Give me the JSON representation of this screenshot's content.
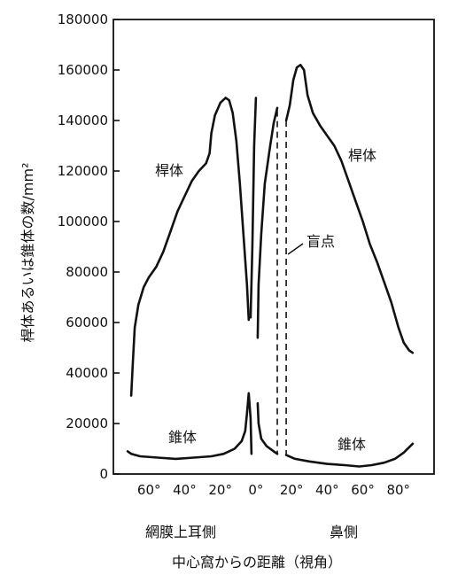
{
  "chart_data": {
    "type": "line",
    "ylabel": "桿体あるいは錐体の数/mm²",
    "xlabel": "中心窩からの距離（視角）",
    "ylim": [
      0,
      180000
    ],
    "xlim": [
      -80,
      100
    ],
    "y_ticks": [
      "180000",
      "160000",
      "140000",
      "120000",
      "100000",
      "80000",
      "60000",
      "40000",
      "20000",
      "0"
    ],
    "x_ticks": [
      {
        "v": -60,
        "label": "60°"
      },
      {
        "v": -40,
        "label": "40°"
      },
      {
        "v": -20,
        "label": "20°"
      },
      {
        "v": 0,
        "label": "0°"
      },
      {
        "v": 20,
        "label": "20°"
      },
      {
        "v": 40,
        "label": "40°"
      },
      {
        "v": 60,
        "label": "60°"
      },
      {
        "v": 80,
        "label": "80°"
      }
    ],
    "region_labels": {
      "temporal": "網膜上耳側",
      "nasal": "鼻側"
    },
    "blind_spot": {
      "label": "盲点",
      "x_range": [
        12,
        17
      ]
    },
    "series": [
      {
        "name": "桿体",
        "segments": [
          [
            [
              -70,
              31000
            ],
            [
              -69,
              45000
            ],
            [
              -68,
              58000
            ],
            [
              -66,
              67000
            ],
            [
              -63,
              74000
            ],
            [
              -60,
              78000
            ],
            [
              -56,
              82000
            ],
            [
              -52,
              88000
            ],
            [
              -48,
              96000
            ],
            [
              -44,
              104000
            ],
            [
              -40,
              110000
            ],
            [
              -36,
              116000
            ],
            [
              -32,
              120000
            ],
            [
              -28,
              123000
            ],
            [
              -26,
              127000
            ],
            [
              -25,
              135000
            ],
            [
              -23,
              142000
            ],
            [
              -20,
              147000
            ],
            [
              -17,
              149000
            ],
            [
              -15,
              148000
            ],
            [
              -13,
              143000
            ],
            [
              -11,
              132000
            ],
            [
              -9,
              115000
            ],
            [
              -7,
              95000
            ],
            [
              -5,
              75000
            ],
            [
              -4,
              61000
            ]
          ],
          [
            [
              -3,
              62000
            ],
            [
              -2,
              90000
            ],
            [
              -1,
              130000
            ],
            [
              0,
              149000
            ]
          ],
          [
            [
              1,
              54000
            ],
            [
              1.5,
              75000
            ],
            [
              3,
              95000
            ],
            [
              5,
              115000
            ],
            [
              8,
              130000
            ],
            [
              10,
              139000
            ],
            [
              12,
              145000
            ]
          ],
          [
            [
              17,
              140000
            ],
            [
              19,
              146000
            ],
            [
              21,
              156000
            ],
            [
              23,
              161000
            ],
            [
              25,
              162000
            ],
            [
              27,
              160000
            ],
            [
              29,
              150000
            ],
            [
              32,
              143000
            ],
            [
              36,
              138000
            ],
            [
              40,
              134000
            ],
            [
              44,
              130000
            ],
            [
              48,
              124000
            ],
            [
              52,
              116000
            ],
            [
              56,
              108000
            ],
            [
              60,
              100000
            ],
            [
              64,
              91000
            ],
            [
              68,
              84000
            ],
            [
              72,
              76000
            ],
            [
              76,
              68000
            ],
            [
              80,
              58000
            ],
            [
              83,
              52000
            ],
            [
              86,
              49000
            ],
            [
              88,
              48000
            ]
          ]
        ]
      },
      {
        "name": "錐体",
        "segments": [
          [
            [
              -72,
              9000
            ],
            [
              -70,
              8000
            ],
            [
              -65,
              7000
            ],
            [
              -55,
              6500
            ],
            [
              -45,
              6000
            ],
            [
              -35,
              6500
            ],
            [
              -25,
              7000
            ],
            [
              -18,
              8000
            ],
            [
              -12,
              10000
            ],
            [
              -8,
              13000
            ],
            [
              -6,
              17000
            ],
            [
              -5,
              24000
            ],
            [
              -4,
              32000
            ],
            [
              -3,
              22000
            ],
            [
              -2.5,
              8000
            ]
          ],
          [
            [
              1,
              28000
            ],
            [
              1.5,
              20000
            ],
            [
              3,
              14000
            ],
            [
              6,
              11000
            ],
            [
              10,
              9000
            ],
            [
              12,
              8000
            ]
          ],
          [
            [
              17,
              7500
            ],
            [
              22,
              6000
            ],
            [
              30,
              5000
            ],
            [
              40,
              4000
            ],
            [
              50,
              3500
            ],
            [
              58,
              3000
            ],
            [
              65,
              3500
            ],
            [
              72,
              4500
            ],
            [
              78,
              6000
            ],
            [
              83,
              8500
            ],
            [
              88,
              12000
            ]
          ]
        ]
      }
    ]
  }
}
